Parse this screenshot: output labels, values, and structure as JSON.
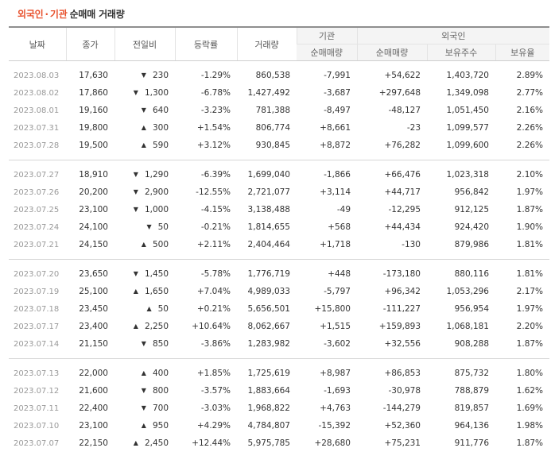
{
  "title": {
    "foreign": "외국인",
    "dot": "·",
    "institution": "기관",
    "rest": "순매매 거래량"
  },
  "headers": {
    "date": "날짜",
    "close": "종가",
    "change": "전일비",
    "rate": "등락률",
    "volume": "거래량",
    "inst_group": "기관",
    "foreign_group": "외국인",
    "inst_net": "순매매량",
    "foreign_net": "순매매량",
    "foreign_hold": "보유주수",
    "foreign_ratio": "보유율"
  },
  "colors": {
    "up": "#e51b1b",
    "down": "#1f6fd4",
    "accent": "#e8512d"
  },
  "groups": [
    {
      "rows": [
        {
          "date": "2023.08.03",
          "close": "17,630",
          "dir": "down",
          "change": "230",
          "rate": "-1.29%",
          "volume": "860,538",
          "inst": "-7,991",
          "foreign": "+54,622",
          "hold": "1,403,720",
          "ratio": "2.89%"
        },
        {
          "date": "2023.08.02",
          "close": "17,860",
          "dir": "down",
          "change": "1,300",
          "rate": "-6.78%",
          "volume": "1,427,492",
          "inst": "-3,687",
          "foreign": "+297,648",
          "hold": "1,349,098",
          "ratio": "2.77%"
        },
        {
          "date": "2023.08.01",
          "close": "19,160",
          "dir": "down",
          "change": "640",
          "rate": "-3.23%",
          "volume": "781,388",
          "inst": "-8,497",
          "foreign": "-48,127",
          "hold": "1,051,450",
          "ratio": "2.16%"
        },
        {
          "date": "2023.07.31",
          "close": "19,800",
          "dir": "up",
          "change": "300",
          "rate": "+1.54%",
          "volume": "806,774",
          "inst": "+8,661",
          "foreign": "-23",
          "hold": "1,099,577",
          "ratio": "2.26%"
        },
        {
          "date": "2023.07.28",
          "close": "19,500",
          "dir": "up",
          "change": "590",
          "rate": "+3.12%",
          "volume": "930,845",
          "inst": "+8,872",
          "foreign": "+76,282",
          "hold": "1,099,600",
          "ratio": "2.26%"
        }
      ]
    },
    {
      "rows": [
        {
          "date": "2023.07.27",
          "close": "18,910",
          "dir": "down",
          "change": "1,290",
          "rate": "-6.39%",
          "volume": "1,699,040",
          "inst": "-1,866",
          "foreign": "+66,476",
          "hold": "1,023,318",
          "ratio": "2.10%"
        },
        {
          "date": "2023.07.26",
          "close": "20,200",
          "dir": "down",
          "change": "2,900",
          "rate": "-12.55%",
          "volume": "2,721,077",
          "inst": "+3,114",
          "foreign": "+44,717",
          "hold": "956,842",
          "ratio": "1.97%"
        },
        {
          "date": "2023.07.25",
          "close": "23,100",
          "dir": "down",
          "change": "1,000",
          "rate": "-4.15%",
          "volume": "3,138,488",
          "inst": "-49",
          "foreign": "-12,295",
          "hold": "912,125",
          "ratio": "1.87%"
        },
        {
          "date": "2023.07.24",
          "close": "24,100",
          "dir": "down",
          "change": "50",
          "rate": "-0.21%",
          "volume": "1,814,655",
          "inst": "+568",
          "foreign": "+44,434",
          "hold": "924,420",
          "ratio": "1.90%"
        },
        {
          "date": "2023.07.21",
          "close": "24,150",
          "dir": "up",
          "change": "500",
          "rate": "+2.11%",
          "volume": "2,404,464",
          "inst": "+1,718",
          "foreign": "-130",
          "hold": "879,986",
          "ratio": "1.81%"
        }
      ]
    },
    {
      "rows": [
        {
          "date": "2023.07.20",
          "close": "23,650",
          "dir": "down",
          "change": "1,450",
          "rate": "-5.78%",
          "volume": "1,776,719",
          "inst": "+448",
          "foreign": "-173,180",
          "hold": "880,116",
          "ratio": "1.81%"
        },
        {
          "date": "2023.07.19",
          "close": "25,100",
          "dir": "up",
          "change": "1,650",
          "rate": "+7.04%",
          "volume": "4,989,033",
          "inst": "-5,797",
          "foreign": "+96,342",
          "hold": "1,053,296",
          "ratio": "2.17%"
        },
        {
          "date": "2023.07.18",
          "close": "23,450",
          "dir": "up",
          "change": "50",
          "rate": "+0.21%",
          "volume": "5,656,501",
          "inst": "+15,800",
          "foreign": "-111,227",
          "hold": "956,954",
          "ratio": "1.97%"
        },
        {
          "date": "2023.07.17",
          "close": "23,400",
          "dir": "up",
          "change": "2,250",
          "rate": "+10.64%",
          "volume": "8,062,667",
          "inst": "+1,515",
          "foreign": "+159,893",
          "hold": "1,068,181",
          "ratio": "2.20%"
        },
        {
          "date": "2023.07.14",
          "close": "21,150",
          "dir": "down",
          "change": "850",
          "rate": "-3.86%",
          "volume": "1,283,982",
          "inst": "-3,602",
          "foreign": "+32,556",
          "hold": "908,288",
          "ratio": "1.87%"
        }
      ]
    },
    {
      "rows": [
        {
          "date": "2023.07.13",
          "close": "22,000",
          "dir": "up",
          "change": "400",
          "rate": "+1.85%",
          "volume": "1,725,619",
          "inst": "+8,987",
          "foreign": "+86,853",
          "hold": "875,732",
          "ratio": "1.80%"
        },
        {
          "date": "2023.07.12",
          "close": "21,600",
          "dir": "down",
          "change": "800",
          "rate": "-3.57%",
          "volume": "1,883,664",
          "inst": "-1,693",
          "foreign": "-30,978",
          "hold": "788,879",
          "ratio": "1.62%"
        },
        {
          "date": "2023.07.11",
          "close": "22,400",
          "dir": "down",
          "change": "700",
          "rate": "-3.03%",
          "volume": "1,968,822",
          "inst": "+4,763",
          "foreign": "-144,279",
          "hold": "819,857",
          "ratio": "1.69%"
        },
        {
          "date": "2023.07.10",
          "close": "23,100",
          "dir": "up",
          "change": "950",
          "rate": "+4.29%",
          "volume": "4,784,807",
          "inst": "-15,392",
          "foreign": "+52,360",
          "hold": "964,136",
          "ratio": "1.98%"
        },
        {
          "date": "2023.07.07",
          "close": "22,150",
          "dir": "up",
          "change": "2,450",
          "rate": "+12.44%",
          "volume": "5,975,785",
          "inst": "+28,680",
          "foreign": "+75,231",
          "hold": "911,776",
          "ratio": "1.87%"
        }
      ]
    }
  ]
}
